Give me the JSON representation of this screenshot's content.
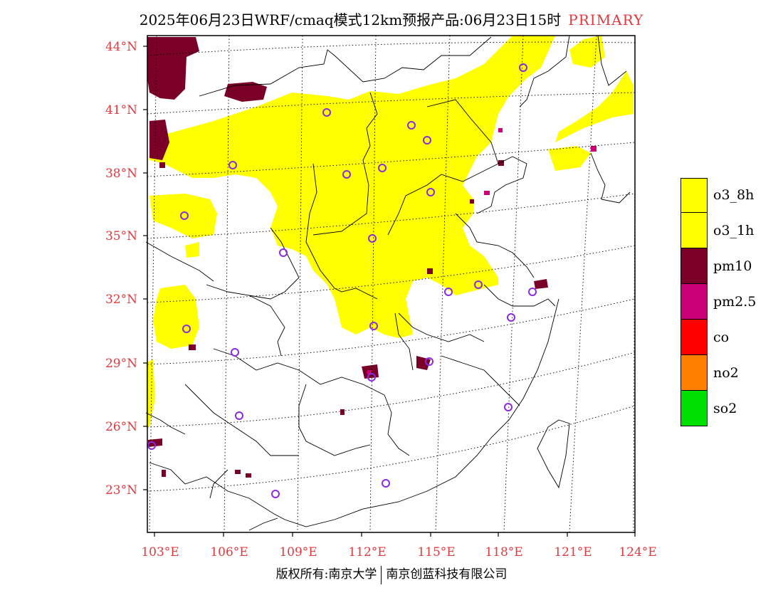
{
  "title": {
    "main": "2025年06月23日WRF/cmaq模式12km预报产品:06月23日15时",
    "tag": "PRIMARY"
  },
  "axes": {
    "lat_labels": [
      "44°N",
      "41°N",
      "38°N",
      "35°N",
      "32°N",
      "29°N",
      "26°N",
      "23°N"
    ],
    "lon_labels": [
      "103°E",
      "106°E",
      "109°E",
      "112°E",
      "115°E",
      "118°E",
      "121°E",
      "124°E"
    ]
  },
  "legend": {
    "items": [
      {
        "label": "o3_8h",
        "color": "#ffff00"
      },
      {
        "label": "o3_1h",
        "color": "#ffff00"
      },
      {
        "label": "pm10",
        "color": "#7a0028"
      },
      {
        "label": "pm2.5",
        "color": "#cc0077"
      },
      {
        "label": "co",
        "color": "#ff0000"
      },
      {
        "label": "no2",
        "color": "#ff7f00"
      },
      {
        "label": "so2",
        "color": "#00e000"
      }
    ]
  },
  "colors": {
    "o3": "#ffff00",
    "pm10": "#7a0028",
    "pm25": "#cc0077",
    "city_marker": "#8a2be2",
    "axis_label": "#e0393e",
    "frame": "#000000"
  },
  "footer": {
    "left": "版权所有:南京大学",
    "right": "南京创蓝科技有限公司"
  }
}
